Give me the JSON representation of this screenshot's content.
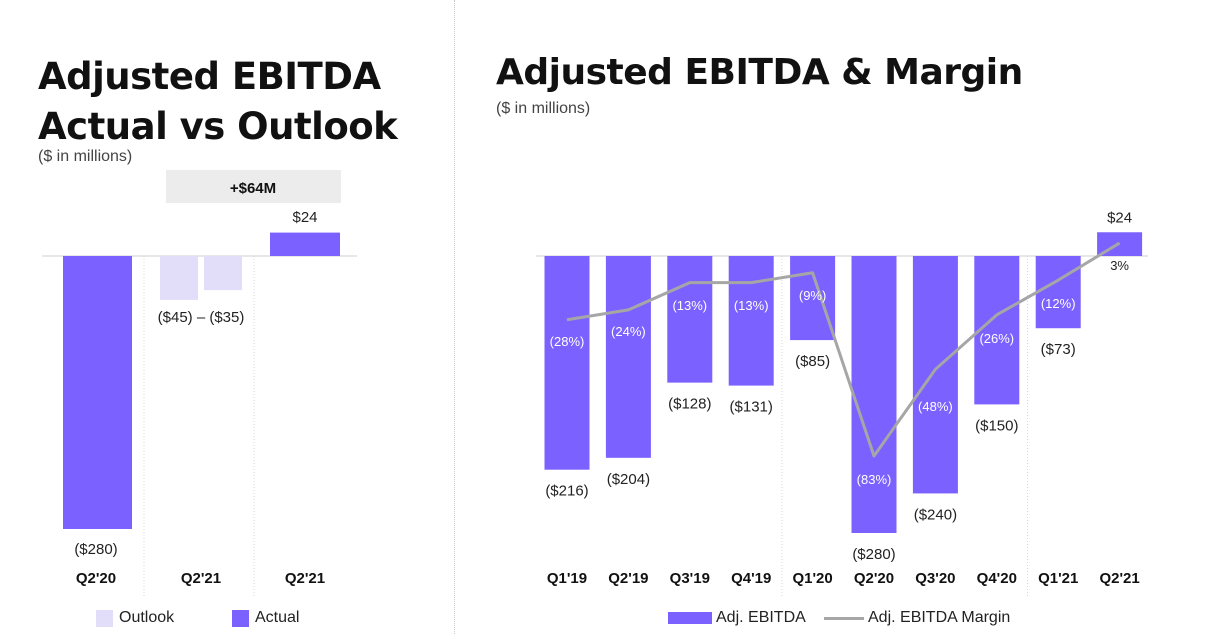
{
  "left": {
    "title_line1": "Adjusted EBITDA",
    "title_line2": "Actual vs Outlook",
    "subtitle": "($ in millions)",
    "change_badge": "+$64M",
    "outlook_range_label": "($45) – ($35)",
    "legend": {
      "outlook": "Outlook",
      "actual": "Actual"
    }
  },
  "right": {
    "title": "Adjusted EBITDA & Margin",
    "subtitle": "($ in millions)",
    "legend": {
      "bar": "Adj. EBITDA",
      "line": "Adj. EBITDA Margin"
    }
  },
  "colors": {
    "actual": "#7b61ff",
    "outlook": "#e2ddf9",
    "margin_line": "#a6a6a6",
    "badge_bg": "#ececec"
  },
  "chart_data": [
    {
      "type": "bar",
      "title": "Adjusted EBITDA Actual vs Outlook",
      "subtitle": "($ in millions)",
      "categories": [
        "Q2'20",
        "Q2'21",
        "Q2'21"
      ],
      "series": [
        {
          "name": "Actual",
          "values": [
            -280,
            null,
            24
          ],
          "labels": [
            "($280)",
            "",
            "$24"
          ]
        },
        {
          "name": "Outlook",
          "values": [
            null,
            [
              -45,
              -35
            ],
            null
          ],
          "labels": [
            "",
            "($45) – ($35)",
            ""
          ]
        }
      ],
      "annotations": [
        "+$64M"
      ],
      "ylim": [
        -280,
        24
      ],
      "legend": "bottom"
    },
    {
      "type": "bar",
      "title": "Adjusted EBITDA & Margin",
      "subtitle": "($ in millions)",
      "categories": [
        "Q1'19",
        "Q2'19",
        "Q3'19",
        "Q4'19",
        "Q1'20",
        "Q2'20",
        "Q3'20",
        "Q4'20",
        "Q1'21",
        "Q2'21"
      ],
      "series": [
        {
          "name": "Adj. EBITDA",
          "type": "bar",
          "values": [
            -216,
            -204,
            -128,
            -131,
            -85,
            -280,
            -240,
            -150,
            -73,
            24
          ],
          "labels": [
            "($216)",
            "($204)",
            "($128)",
            "($131)",
            "($85)",
            "($280)",
            "($240)",
            "($150)",
            "($73)",
            "$24"
          ]
        },
        {
          "name": "Adj. EBITDA Margin",
          "type": "line",
          "values": [
            -28,
            -24,
            -13,
            -13,
            -9,
            -83,
            -48,
            -26,
            -12,
            3
          ],
          "labels": [
            "(28%)",
            "(24%)",
            "(13%)",
            "(13%)",
            "(9%)",
            "(83%)",
            "(48%)",
            "(26%)",
            "(12%)",
            "3%"
          ]
        }
      ],
      "ylim": [
        -280,
        24
      ],
      "legend": "bottom"
    }
  ]
}
